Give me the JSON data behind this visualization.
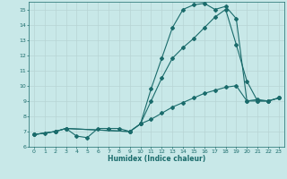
{
  "xlabel": "Humidex (Indice chaleur)",
  "bg_color": "#c8e8e8",
  "grid_color": "#b8d4d4",
  "line_color": "#1a6b6b",
  "xlim": [
    -0.5,
    23.5
  ],
  "ylim": [
    6,
    15.5
  ],
  "yticks": [
    6,
    7,
    8,
    9,
    10,
    11,
    12,
    13,
    14,
    15
  ],
  "xticks": [
    0,
    1,
    2,
    3,
    4,
    5,
    6,
    7,
    8,
    9,
    10,
    11,
    12,
    13,
    14,
    15,
    16,
    17,
    18,
    19,
    20,
    21,
    22,
    23
  ],
  "curve1_x": [
    0,
    1,
    2,
    3,
    4,
    5,
    6,
    7,
    8,
    9,
    10,
    11,
    12,
    13,
    14,
    15,
    16,
    17,
    18,
    19,
    20,
    21,
    22,
    23
  ],
  "curve1_y": [
    6.8,
    6.9,
    7.0,
    7.2,
    6.7,
    6.6,
    7.2,
    7.2,
    7.2,
    7.0,
    7.5,
    9.8,
    11.8,
    13.8,
    15.0,
    15.3,
    15.4,
    15.0,
    15.2,
    14.4,
    9.0,
    9.1,
    9.0,
    9.2
  ],
  "curve2_x": [
    0,
    2,
    3,
    9,
    10,
    11,
    12,
    13,
    14,
    15,
    16,
    17,
    18,
    19,
    20,
    21,
    22,
    23
  ],
  "curve2_y": [
    6.8,
    7.0,
    7.2,
    7.0,
    7.5,
    9.0,
    10.5,
    11.8,
    12.5,
    13.1,
    13.8,
    14.5,
    15.0,
    12.7,
    10.3,
    9.0,
    9.0,
    9.2
  ],
  "curve3_x": [
    0,
    2,
    3,
    9,
    10,
    11,
    12,
    13,
    14,
    15,
    16,
    17,
    18,
    19,
    20,
    21,
    22,
    23
  ],
  "curve3_y": [
    6.8,
    7.0,
    7.2,
    7.0,
    7.5,
    7.8,
    8.2,
    8.6,
    8.9,
    9.2,
    9.5,
    9.7,
    9.9,
    10.0,
    9.0,
    9.0,
    9.0,
    9.2
  ]
}
